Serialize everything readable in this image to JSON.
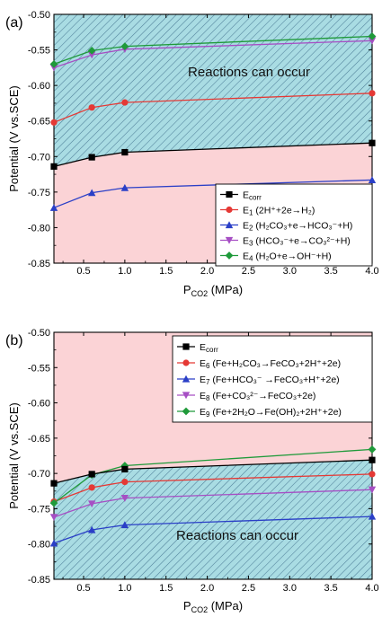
{
  "chart_data": [
    {
      "type": "line",
      "panel_label": "(a)",
      "xlabel_main": "P",
      "xlabel_sub": "CO2",
      "xlabel_unit": " (MPa)",
      "ylabel": "Potential (V vs.SCE)",
      "xlim": [
        0.14,
        4.0
      ],
      "ylim": [
        -0.85,
        -0.5
      ],
      "xticks": [
        0.5,
        1.0,
        1.5,
        2.0,
        2.5,
        3.0,
        3.5,
        4.0
      ],
      "xtick_labels": [
        "0.5",
        "1.0",
        "1.5",
        "2.0",
        "2.5",
        "3.0",
        "3.5",
        "4.0"
      ],
      "yticks": [
        -0.85,
        -0.8,
        -0.75,
        -0.7,
        -0.65,
        -0.6,
        -0.55,
        -0.5
      ],
      "ytick_labels": [
        "-0.85",
        "-0.80",
        "-0.75",
        "-0.70",
        "-0.65",
        "-0.60",
        "-0.55",
        "-0.50"
      ],
      "annotation": "Reactions can occur",
      "hatched_region": "above E_corr",
      "pink_region": "below E_corr",
      "legend_position": "bottom-right",
      "x": [
        0.14,
        0.6,
        1.0,
        4.0
      ],
      "series": [
        {
          "name": "Ecorr",
          "label_main": "E",
          "label_sub": "corr",
          "label_rest": "",
          "color": "#000000",
          "marker": "square",
          "values": [
            -0.714,
            -0.701,
            -0.694,
            -0.681
          ]
        },
        {
          "name": "E1",
          "label_main": "E",
          "label_sub": "1",
          "label_rest": " (2H⁺+2e→H₂)",
          "color": "#e53935",
          "marker": "circle",
          "values": [
            -0.652,
            -0.631,
            -0.624,
            -0.611
          ]
        },
        {
          "name": "E2",
          "label_main": "E",
          "label_sub": "2",
          "label_rest": " (H₂CO₃+e→HCO₃⁻+H)",
          "color": "#2a3fc7",
          "marker": "triangle-up",
          "values": [
            -0.772,
            -0.751,
            -0.744,
            -0.733
          ]
        },
        {
          "name": "E3",
          "label_main": "E",
          "label_sub": "3",
          "label_rest": " (HCO₃⁻+e→CO₃²⁻+H)",
          "color": "#a64fc4",
          "marker": "triangle-down",
          "values": [
            -0.575,
            -0.557,
            -0.549,
            -0.537
          ]
        },
        {
          "name": "E4",
          "label_main": "E",
          "label_sub": "4",
          "label_rest": " (H₂O+e→OH⁻+H)",
          "color": "#1f9a3a",
          "marker": "diamond",
          "values": [
            -0.57,
            -0.551,
            -0.545,
            -0.531
          ]
        }
      ]
    },
    {
      "type": "line",
      "panel_label": "(b)",
      "xlabel_main": "P",
      "xlabel_sub": "CO2",
      "xlabel_unit": " (MPa)",
      "ylabel": "Potential (V vs.SCE)",
      "xlim": [
        0.14,
        4.0
      ],
      "ylim": [
        -0.85,
        -0.5
      ],
      "xticks": [
        0.5,
        1.0,
        1.5,
        2.0,
        2.5,
        3.0,
        3.5,
        4.0
      ],
      "xtick_labels": [
        "0.5",
        "1.0",
        "1.5",
        "2.0",
        "2.5",
        "3.0",
        "3.5",
        "4.0"
      ],
      "yticks": [
        -0.85,
        -0.8,
        -0.75,
        -0.7,
        -0.65,
        -0.6,
        -0.55,
        -0.5
      ],
      "ytick_labels": [
        "-0.85",
        "-0.80",
        "-0.75",
        "-0.70",
        "-0.65",
        "-0.60",
        "-0.55",
        "-0.50"
      ],
      "annotation": "Reactions can occur",
      "hatched_region": "below E_corr",
      "pink_region": "above E_corr",
      "legend_position": "top-right",
      "x": [
        0.14,
        0.6,
        1.0,
        4.0
      ],
      "series": [
        {
          "name": "Ecorr",
          "label_main": "E",
          "label_sub": "corr",
          "label_rest": "",
          "color": "#000000",
          "marker": "square",
          "values": [
            -0.714,
            -0.701,
            -0.694,
            -0.681
          ]
        },
        {
          "name": "E6",
          "label_main": "E",
          "label_sub": "6",
          "label_rest": " (Fe+H₂CO₃→FeCO₃+2H⁺+2e)",
          "color": "#e53935",
          "marker": "circle",
          "values": [
            -0.74,
            -0.72,
            -0.712,
            -0.701
          ]
        },
        {
          "name": "E7",
          "label_main": "E",
          "label_sub": "7",
          "label_rest": " (Fe+HCO₃⁻ →FeCO₃+H⁺+2e)",
          "color": "#2a3fc7",
          "marker": "triangle-up",
          "values": [
            -0.799,
            -0.78,
            -0.773,
            -0.761
          ]
        },
        {
          "name": "E8",
          "label_main": "E",
          "label_sub": "8",
          "label_rest": " (Fe+CO₃²⁻→FeCO₃+2e)",
          "color": "#a64fc4",
          "marker": "triangle-down",
          "values": [
            -0.762,
            -0.743,
            -0.735,
            -0.723
          ]
        },
        {
          "name": "E9",
          "label_main": "E",
          "label_sub": "9",
          "label_rest": " (Fe+2H₂O→Fe(OH)₂+2H⁺+2e)",
          "color": "#1f9a3a",
          "marker": "diamond",
          "values": [
            -0.742,
            -0.702,
            -0.689,
            -0.666
          ]
        }
      ]
    }
  ]
}
